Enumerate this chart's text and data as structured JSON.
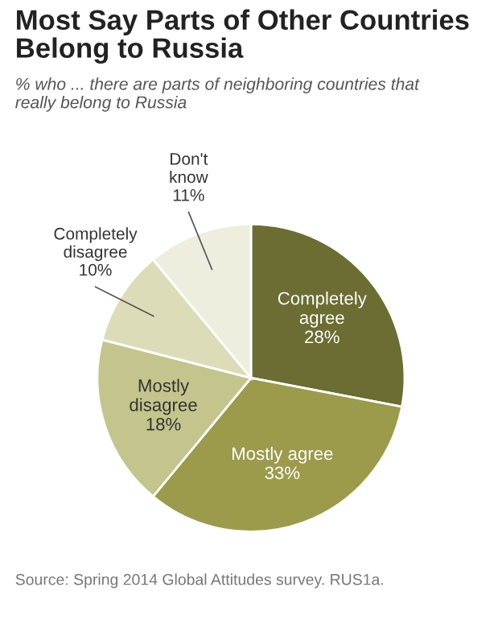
{
  "chart_data": {
    "type": "pie",
    "title": "Most Say Parts of Other Countries\nBelong to Russia",
    "subtitle": "% who ... there are parts of neighboring countries that\nreally belong to Russia",
    "categories": [
      "Completely\nagree",
      "Mostly agree",
      "Mostly\ndisagree",
      "Completely\ndisagree",
      "Don't\nknow"
    ],
    "values": [
      28,
      33,
      18,
      10,
      11
    ],
    "colors": [
      "#6b6d32",
      "#9b9b4b",
      "#c4c58c",
      "#dcdcb9",
      "#eeedde"
    ],
    "value_labels": [
      "28%",
      "33%",
      "18%",
      "10%",
      "11%"
    ],
    "annotations": [
      "Source: Spring 2014 Global Attitudes survey. RUS1a."
    ]
  }
}
